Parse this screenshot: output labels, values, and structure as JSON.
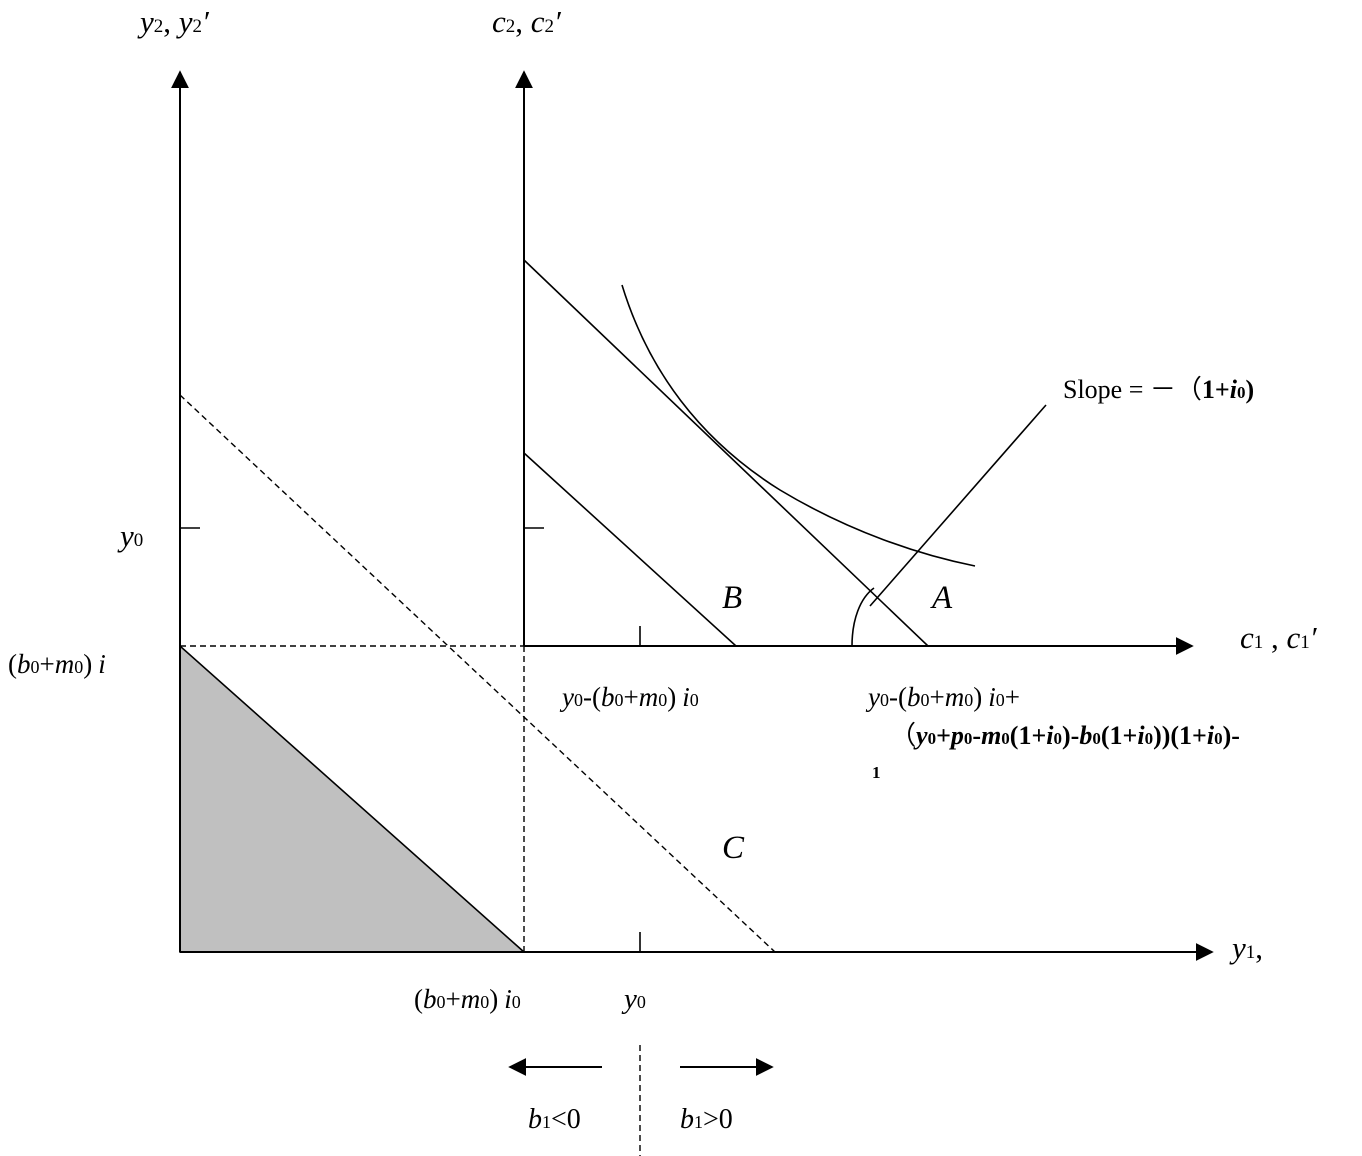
{
  "labels": {
    "y_axis_left": {
      "var": "y",
      "sub": "2",
      "sep": ", ",
      "var2": "y",
      "sub2": "2",
      "prime": "′"
    },
    "y_axis_right": {
      "var": "c",
      "sub": "2",
      "sep": ", ",
      "var2": "c",
      "sub2": "2",
      "prime": "′"
    },
    "x_axis_upper": {
      "var": "c",
      "sub": "1",
      "sep": " , ",
      "var2": "c",
      "sub2": "1",
      "prime": "′"
    },
    "x_axis_lower": {
      "var": "y",
      "sub": "1",
      "suffix": ","
    },
    "y0_left": {
      "var": "y",
      "sub": "0"
    },
    "intercept_left": {
      "open": "(",
      "b": "b",
      "bsub": "0",
      "plus": "+",
      "m": "m",
      "msub": "0",
      "close": ")",
      "i": "i"
    },
    "x_tick_b0m0": {
      "open": "(",
      "b": "b",
      "bsub": "0",
      "plus": "+",
      "m": "m",
      "msub": "0",
      "close": ")",
      "i": "i",
      "isub": "0"
    },
    "x_tick_y0": {
      "var": "y",
      "sub": "0"
    },
    "endpoint_B": {
      "y": "y",
      "ysub": "0",
      "minus": "-(",
      "b": "b",
      "bsub": "0",
      "plus": "+",
      "m": "m",
      "msub": "0",
      "close": ")",
      "i": "i",
      "isub": "0"
    },
    "endpoint_A_line1": {
      "y": "y",
      "ysub": "0",
      "minus": "-(",
      "b": "b",
      "bsub": "0",
      "plus": "+",
      "m": "m",
      "msub": "0",
      "close": ")",
      "i": "i",
      "isub": "0",
      "tail": "+"
    },
    "endpoint_A_line2": {
      "p1": "（",
      "y": "y",
      "ysub": "0",
      "plus1": "+",
      "p": "p",
      "psub": "0",
      "minus1": "-",
      "m": "m",
      "msub": "0",
      "par1": "(1+",
      "i1": "i",
      "i1sub": "0",
      "cl1": ")-",
      "b": "b",
      "bsub": "0",
      "par2": "(1+",
      "i2": "i",
      "i2sub": "0",
      "cl2": "))(1+",
      "i3": "i",
      "i3sub": "0",
      "cl3": ")",
      "exp": "-"
    },
    "endpoint_A_line3": "1",
    "slope": {
      "text": "Slope  =  －（",
      "one": "1+",
      "i": "i",
      "isub": "0",
      "close": ")"
    },
    "region_A": "A",
    "region_B": "B",
    "region_C": "C",
    "b1_neg": {
      "var": "b",
      "sub": "1",
      "rel": "<0"
    },
    "b1_pos": {
      "var": "b",
      "sub": "1",
      "rel": ">0"
    }
  },
  "colors": {
    "shade": "#c0c0c0",
    "ink": "#000000",
    "background": "#ffffff"
  }
}
